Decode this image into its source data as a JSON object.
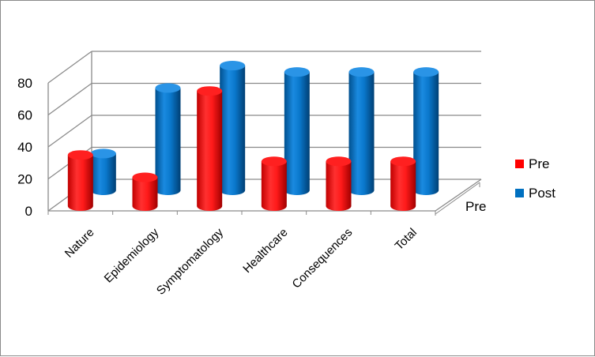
{
  "chart_data": {
    "type": "bar",
    "style": "3d-cylinder",
    "categories": [
      "Nature",
      "Epidemiology",
      "Symptomatology",
      "Healthcare",
      "Consequences",
      "Total"
    ],
    "series": [
      {
        "name": "Pre",
        "values": [
          32,
          18,
          72,
          28,
          28,
          28
        ],
        "color": "#ff0000"
      },
      {
        "name": "Post",
        "values": [
          23,
          64,
          78,
          74,
          74,
          74
        ],
        "color": "#0070c0"
      }
    ],
    "y_ticks": [
      "0",
      "20",
      "40",
      "60",
      "80"
    ],
    "ylim": [
      0,
      80
    ],
    "depth_label": "Pre",
    "grid": true,
    "legend_position": "right"
  }
}
